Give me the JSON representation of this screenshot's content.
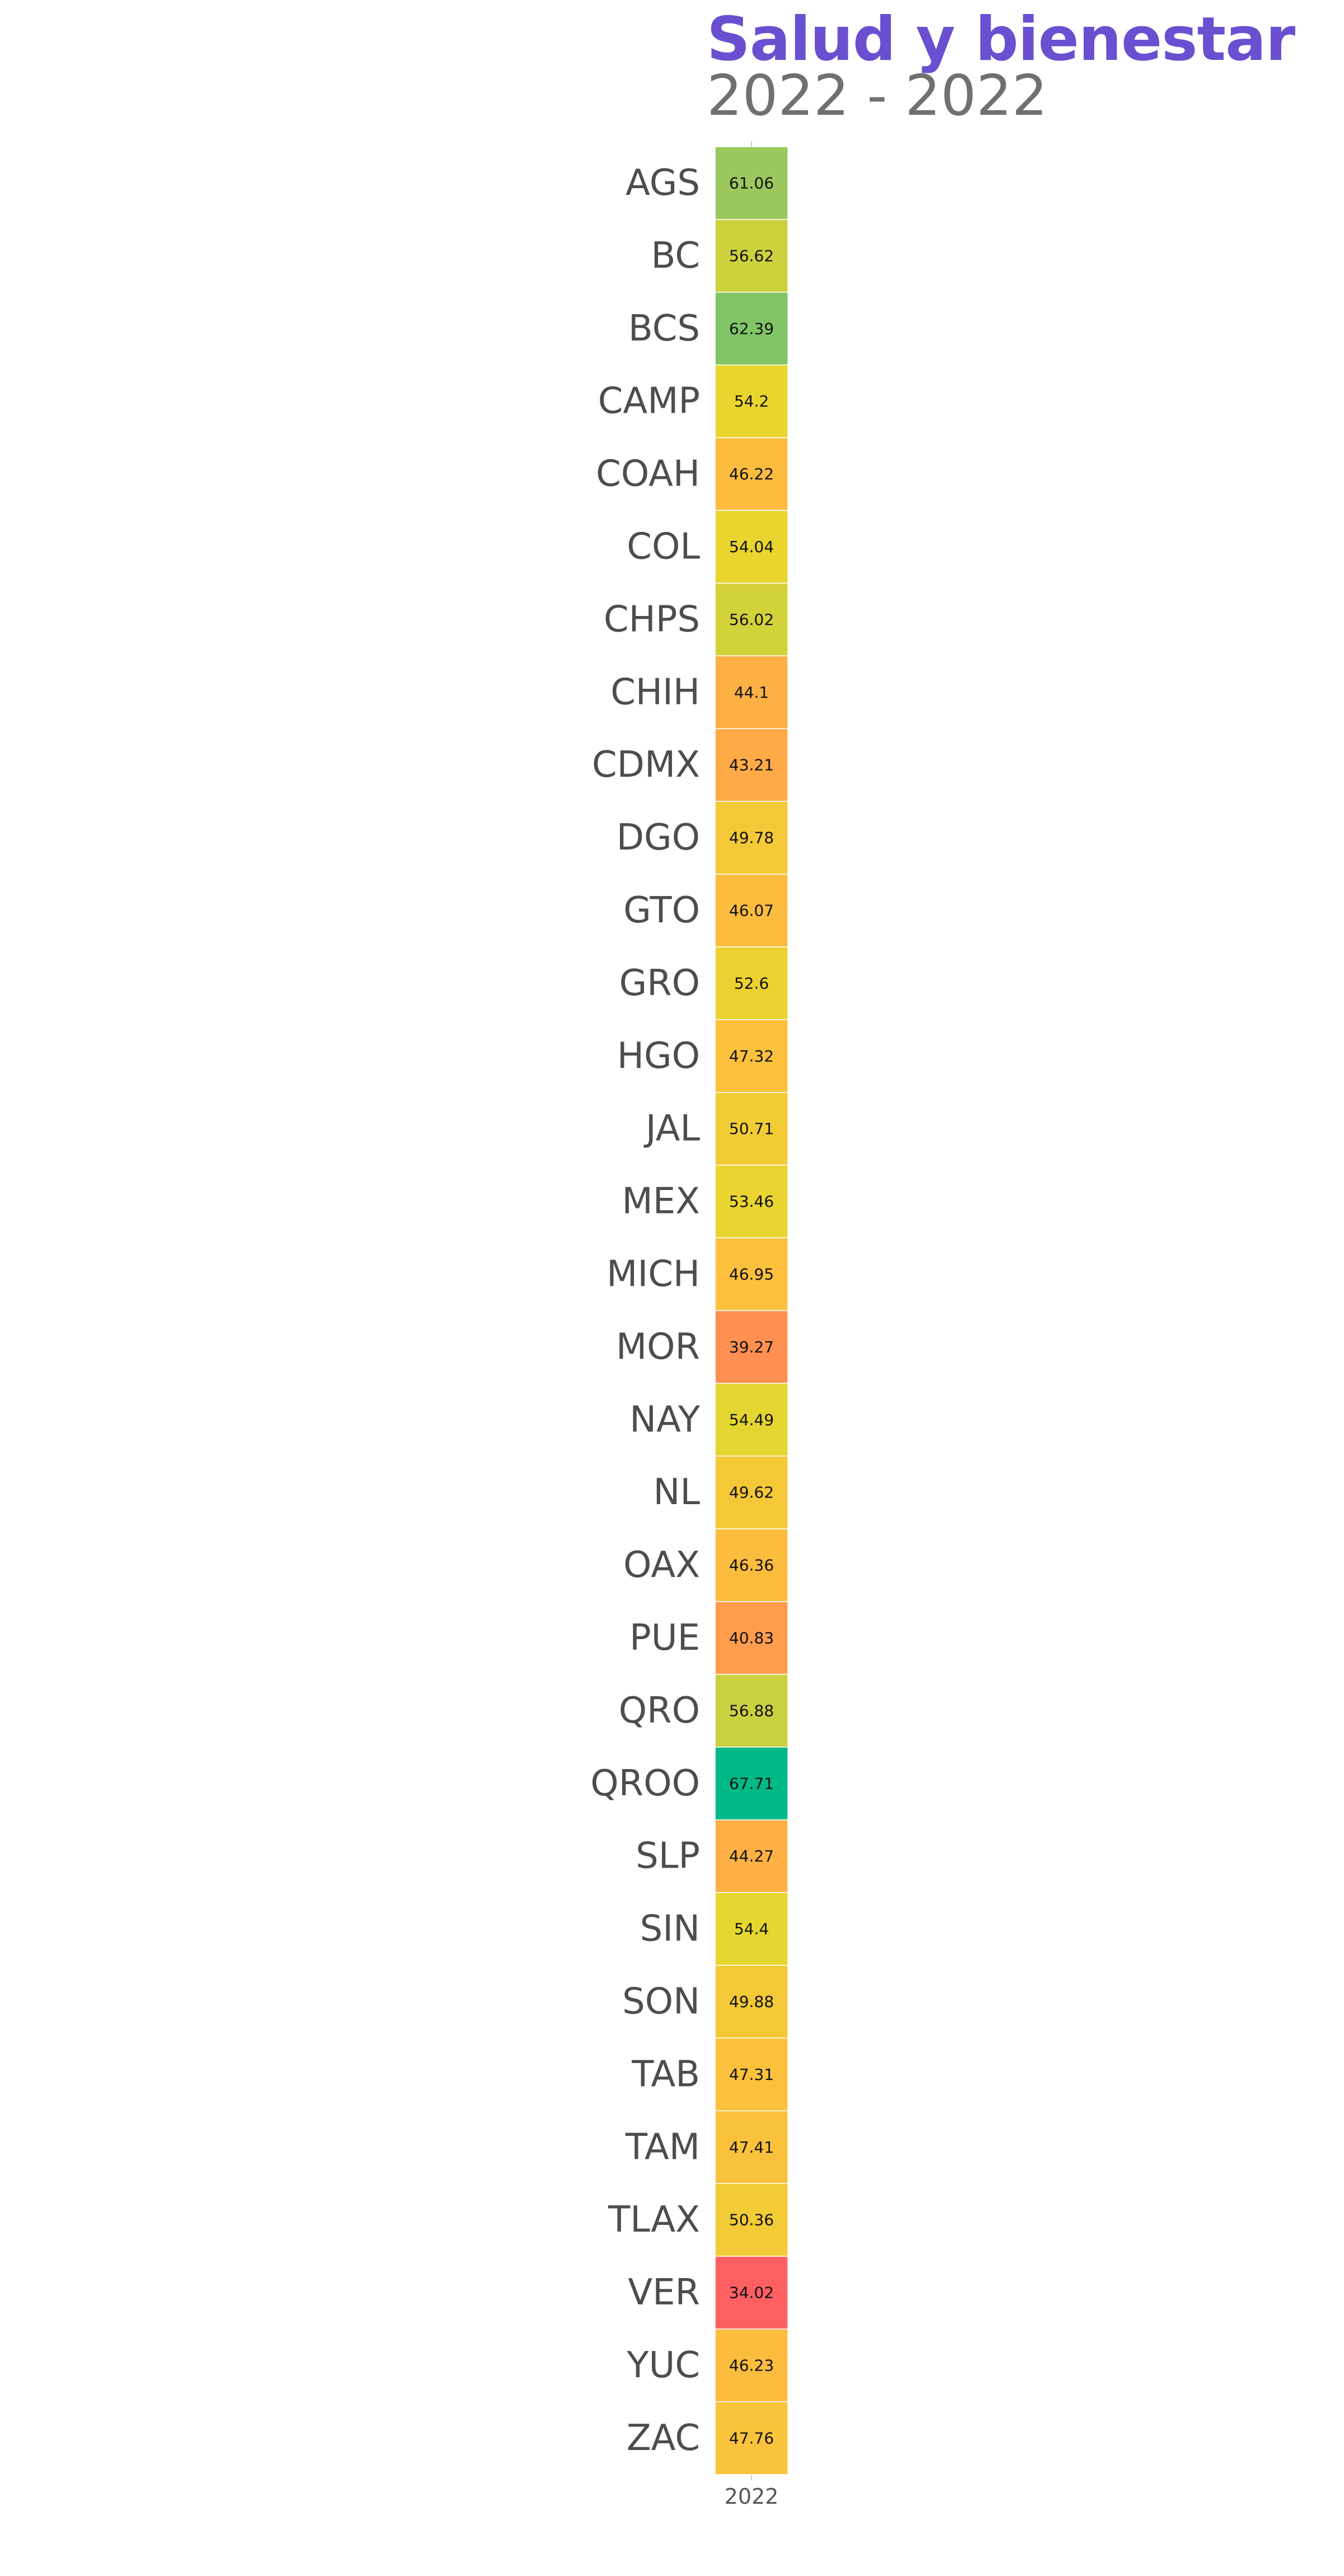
{
  "chart_data": {
    "type": "heatmap",
    "title": "Salud y bienestar",
    "subtitle": "2022 - 2022",
    "xlabel": "",
    "ylabel": "",
    "x": [
      "2022"
    ],
    "categories": [
      "AGS",
      "BC",
      "BCS",
      "CAMP",
      "COAH",
      "COL",
      "CHPS",
      "CHIH",
      "CDMX",
      "DGO",
      "GTO",
      "GRO",
      "HGO",
      "JAL",
      "MEX",
      "MICH",
      "MOR",
      "NAY",
      "NL",
      "OAX",
      "PUE",
      "QRO",
      "QROO",
      "SLP",
      "SIN",
      "SON",
      "TAB",
      "TAM",
      "TLAX",
      "VER",
      "YUC",
      "ZAC"
    ],
    "values": [
      61.06,
      56.62,
      62.39,
      54.2,
      46.22,
      54.04,
      56.02,
      44.1,
      43.21,
      49.78,
      46.07,
      52.6,
      47.32,
      50.71,
      53.46,
      46.95,
      39.27,
      54.49,
      49.62,
      46.36,
      40.83,
      56.88,
      67.71,
      44.27,
      54.4,
      49.88,
      47.31,
      47.41,
      50.36,
      34.02,
      46.23,
      47.76
    ],
    "colors": {
      "low": "#fe6062",
      "mid_low": "#ff9d4d",
      "mid": "#fcc03d",
      "mid_high": "#e8d62e",
      "high": "#93c761",
      "top": "#00b987"
    },
    "color_range": [
      34.02,
      67.71
    ],
    "legend": "none",
    "grid": false
  }
}
